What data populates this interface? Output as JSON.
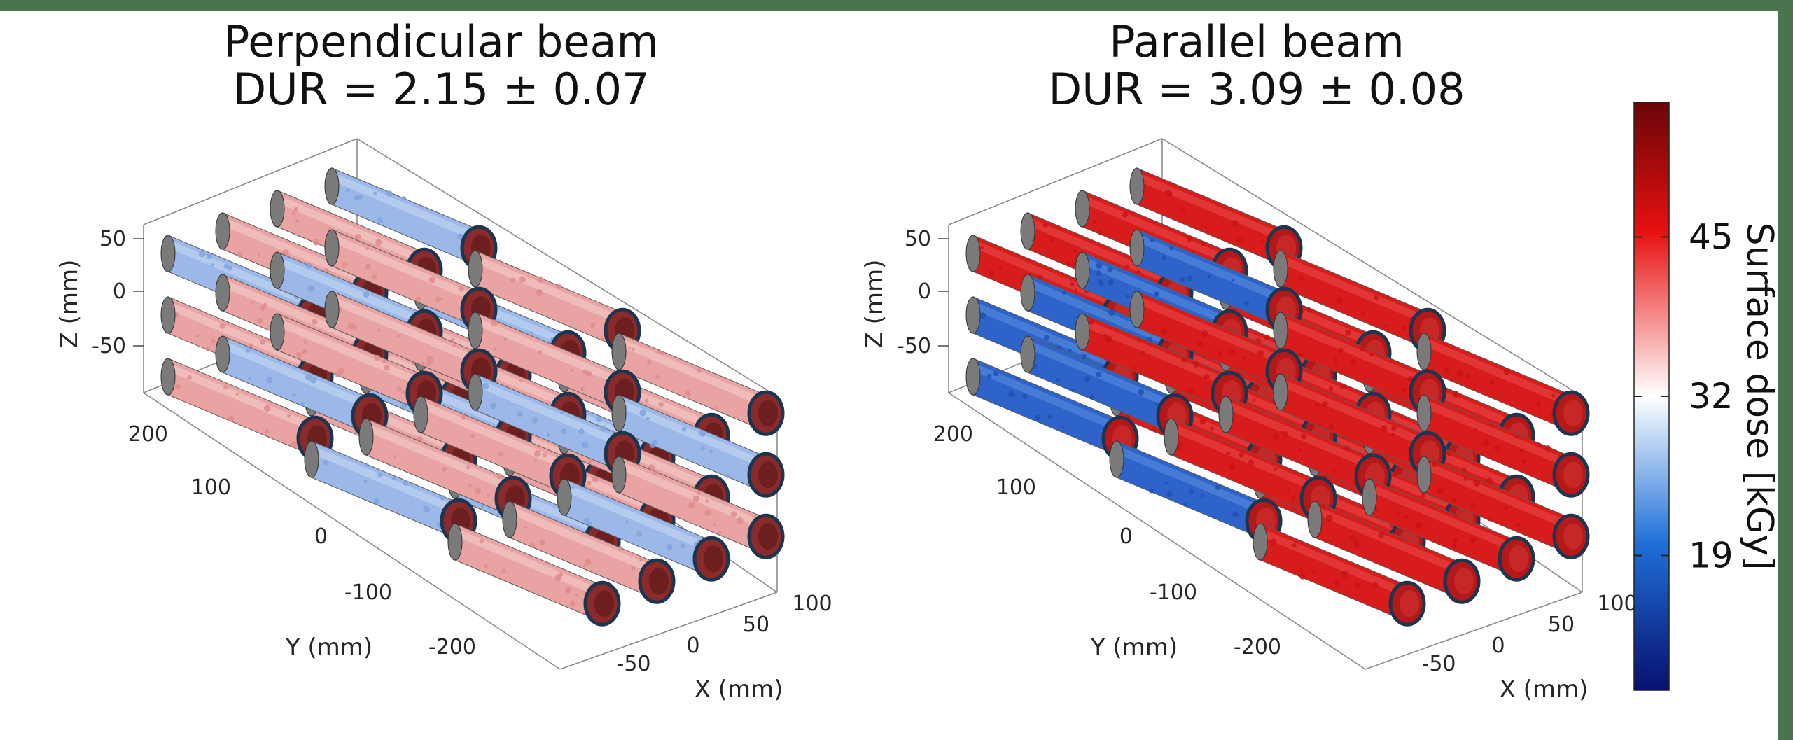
{
  "chart_data": [
    {
      "type": "3d-surface",
      "title": "Perpendicular beam",
      "subtitle": "DUR = 2.15 ± 0.07",
      "xlabel": "X (mm)",
      "ylabel": "Y (mm)",
      "zlabel": "Z (mm)",
      "x_ticks": [
        "-50",
        "0",
        "50",
        "100"
      ],
      "y_ticks": [
        "200",
        "100",
        "0",
        "-100",
        "-200"
      ],
      "z_ticks": [
        "50",
        "0",
        "-50"
      ],
      "dur": 2.15,
      "dur_uncertainty": 0.07,
      "dose_pattern": "mostly light red and light blue (near 32 kGy), moderate uniformity"
    },
    {
      "type": "3d-surface",
      "title": "Parallel beam",
      "subtitle": "DUR = 3.09 ± 0.08",
      "xlabel": "X (mm)",
      "ylabel": "Y (mm)",
      "zlabel": "Z (mm)",
      "x_ticks": [
        "-50",
        "0",
        "50",
        "100"
      ],
      "y_ticks": [
        "200",
        "100",
        "0",
        "-100",
        "-200"
      ],
      "z_ticks": [
        "50",
        "0",
        "-50"
      ],
      "dur": 3.09,
      "dur_uncertainty": 0.08,
      "dose_pattern": "strong red (high dose) with distinct blue (low dose) regions, lower uniformity"
    }
  ],
  "colorbar": {
    "label": "Surface dose [kGy]",
    "ticks": [
      {
        "label": "45",
        "value": 45
      },
      {
        "label": "32",
        "value": 32
      },
      {
        "label": "19",
        "value": 19
      }
    ],
    "range": [
      8,
      56
    ],
    "colors": [
      "#08106e",
      "#1f6fd8",
      "#ffffff",
      "#e81010",
      "#6a0508"
    ]
  }
}
